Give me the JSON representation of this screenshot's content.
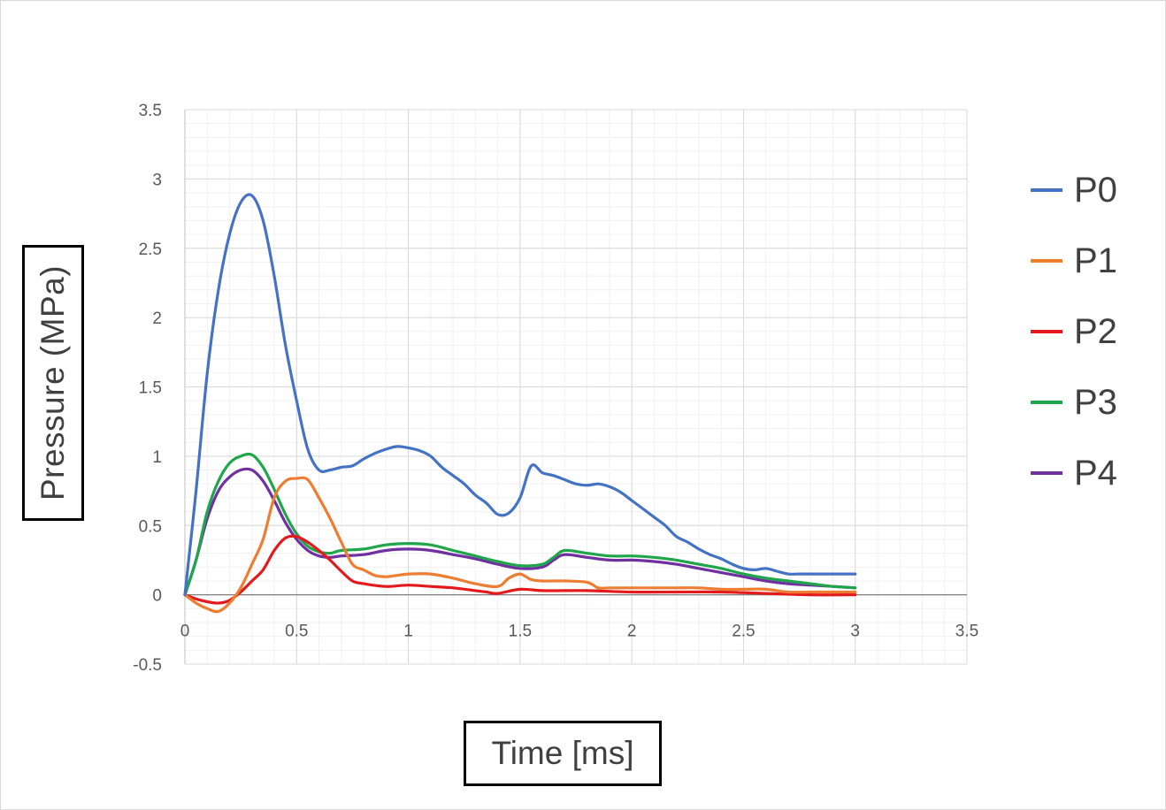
{
  "chart_data": {
    "type": "line",
    "title": "",
    "xlabel": "Time [ms]",
    "ylabel": "Pressure (MPa)",
    "xlim": [
      0,
      3.5
    ],
    "ylim": [
      -0.5,
      3.5
    ],
    "xticks": [
      "0",
      "0.5",
      "1",
      "1.5",
      "2",
      "2.5",
      "3",
      "3.5"
    ],
    "yticks": [
      "-0.5",
      "0",
      "0.5",
      "1",
      "1.5",
      "2",
      "2.5",
      "3",
      "3.5"
    ],
    "grid": "major and minor",
    "legend_position": "right",
    "series": [
      {
        "name": "P0",
        "color": "#4472C4",
        "x": [
          0,
          0.05,
          0.1,
          0.15,
          0.2,
          0.25,
          0.3,
          0.35,
          0.4,
          0.45,
          0.5,
          0.55,
          0.6,
          0.65,
          0.7,
          0.75,
          0.8,
          0.85,
          0.9,
          0.95,
          1.0,
          1.05,
          1.1,
          1.15,
          1.2,
          1.25,
          1.3,
          1.35,
          1.4,
          1.45,
          1.5,
          1.55,
          1.6,
          1.65,
          1.7,
          1.75,
          1.8,
          1.85,
          1.9,
          1.95,
          2.0,
          2.05,
          2.1,
          2.15,
          2.2,
          2.25,
          2.3,
          2.35,
          2.4,
          2.45,
          2.5,
          2.55,
          2.6,
          2.65,
          2.7,
          2.75,
          2.8,
          2.85,
          2.9,
          2.95,
          3.0
        ],
        "y": [
          0,
          0.75,
          1.6,
          2.2,
          2.6,
          2.83,
          2.88,
          2.7,
          2.3,
          1.8,
          1.4,
          1.05,
          0.9,
          0.9,
          0.92,
          0.93,
          0.98,
          1.02,
          1.05,
          1.07,
          1.06,
          1.04,
          1.0,
          0.92,
          0.86,
          0.8,
          0.72,
          0.66,
          0.58,
          0.59,
          0.7,
          0.93,
          0.88,
          0.86,
          0.83,
          0.8,
          0.79,
          0.8,
          0.78,
          0.74,
          0.68,
          0.62,
          0.56,
          0.5,
          0.42,
          0.38,
          0.33,
          0.29,
          0.26,
          0.22,
          0.19,
          0.18,
          0.19,
          0.17,
          0.15,
          0.15,
          0.15,
          0.15,
          0.15,
          0.15,
          0.15
        ]
      },
      {
        "name": "P1",
        "color": "#ED7D31",
        "x": [
          0,
          0.05,
          0.1,
          0.15,
          0.2,
          0.25,
          0.3,
          0.35,
          0.4,
          0.45,
          0.5,
          0.55,
          0.6,
          0.65,
          0.7,
          0.75,
          0.8,
          0.85,
          0.9,
          0.95,
          1.0,
          1.1,
          1.2,
          1.3,
          1.4,
          1.45,
          1.5,
          1.55,
          1.6,
          1.7,
          1.8,
          1.85,
          1.9,
          2.0,
          2.1,
          2.2,
          2.3,
          2.4,
          2.5,
          2.6,
          2.7,
          2.8,
          2.9,
          3.0
        ],
        "y": [
          0,
          -0.06,
          -0.1,
          -0.12,
          -0.06,
          0.05,
          0.22,
          0.4,
          0.7,
          0.82,
          0.84,
          0.83,
          0.7,
          0.55,
          0.38,
          0.22,
          0.18,
          0.14,
          0.13,
          0.14,
          0.15,
          0.15,
          0.12,
          0.08,
          0.06,
          0.12,
          0.15,
          0.11,
          0.1,
          0.1,
          0.09,
          0.05,
          0.05,
          0.05,
          0.05,
          0.05,
          0.05,
          0.04,
          0.04,
          0.04,
          0.02,
          0.02,
          0.02,
          0.02
        ]
      },
      {
        "name": "P2",
        "color": "#E31A1C",
        "x": [
          0,
          0.05,
          0.1,
          0.15,
          0.2,
          0.25,
          0.3,
          0.35,
          0.4,
          0.45,
          0.5,
          0.55,
          0.6,
          0.65,
          0.7,
          0.75,
          0.8,
          0.9,
          1.0,
          1.1,
          1.2,
          1.3,
          1.35,
          1.4,
          1.5,
          1.6,
          1.7,
          1.8,
          2.0,
          2.2,
          2.4,
          2.6,
          2.8,
          3.0
        ],
        "y": [
          0,
          -0.03,
          -0.05,
          -0.06,
          -0.04,
          0.02,
          0.1,
          0.18,
          0.32,
          0.41,
          0.42,
          0.38,
          0.32,
          0.25,
          0.17,
          0.1,
          0.08,
          0.06,
          0.07,
          0.06,
          0.05,
          0.03,
          0.02,
          0.01,
          0.04,
          0.03,
          0.03,
          0.03,
          0.02,
          0.02,
          0.02,
          0.01,
          0.0,
          0.0
        ]
      },
      {
        "name": "P3",
        "color": "#1FA64A",
        "x": [
          0,
          0.05,
          0.1,
          0.15,
          0.2,
          0.25,
          0.3,
          0.35,
          0.4,
          0.45,
          0.5,
          0.55,
          0.6,
          0.65,
          0.7,
          0.8,
          0.9,
          1.0,
          1.1,
          1.2,
          1.3,
          1.4,
          1.5,
          1.6,
          1.65,
          1.7,
          1.8,
          1.9,
          2.0,
          2.1,
          2.2,
          2.3,
          2.4,
          2.5,
          2.6,
          2.7,
          2.8,
          2.9,
          3.0
        ],
        "y": [
          0,
          0.25,
          0.6,
          0.82,
          0.95,
          1.0,
          1.01,
          0.92,
          0.76,
          0.58,
          0.44,
          0.35,
          0.31,
          0.3,
          0.32,
          0.33,
          0.36,
          0.37,
          0.36,
          0.32,
          0.28,
          0.24,
          0.21,
          0.22,
          0.27,
          0.32,
          0.3,
          0.28,
          0.28,
          0.27,
          0.25,
          0.22,
          0.19,
          0.15,
          0.12,
          0.1,
          0.08,
          0.06,
          0.05
        ]
      },
      {
        "name": "P4",
        "color": "#7030A0",
        "x": [
          0,
          0.05,
          0.1,
          0.15,
          0.2,
          0.25,
          0.3,
          0.35,
          0.4,
          0.45,
          0.5,
          0.55,
          0.6,
          0.65,
          0.7,
          0.8,
          0.9,
          1.0,
          1.1,
          1.2,
          1.3,
          1.4,
          1.5,
          1.6,
          1.65,
          1.7,
          1.8,
          1.9,
          2.0,
          2.1,
          2.2,
          2.3,
          2.4,
          2.5,
          2.6,
          2.7,
          2.8,
          2.9,
          3.0
        ],
        "y": [
          0,
          0.25,
          0.55,
          0.75,
          0.85,
          0.9,
          0.9,
          0.82,
          0.68,
          0.52,
          0.4,
          0.32,
          0.28,
          0.27,
          0.28,
          0.29,
          0.32,
          0.33,
          0.32,
          0.29,
          0.26,
          0.22,
          0.19,
          0.2,
          0.25,
          0.29,
          0.27,
          0.25,
          0.25,
          0.24,
          0.22,
          0.19,
          0.16,
          0.13,
          0.1,
          0.08,
          0.07,
          0.06,
          0.05
        ]
      }
    ]
  }
}
